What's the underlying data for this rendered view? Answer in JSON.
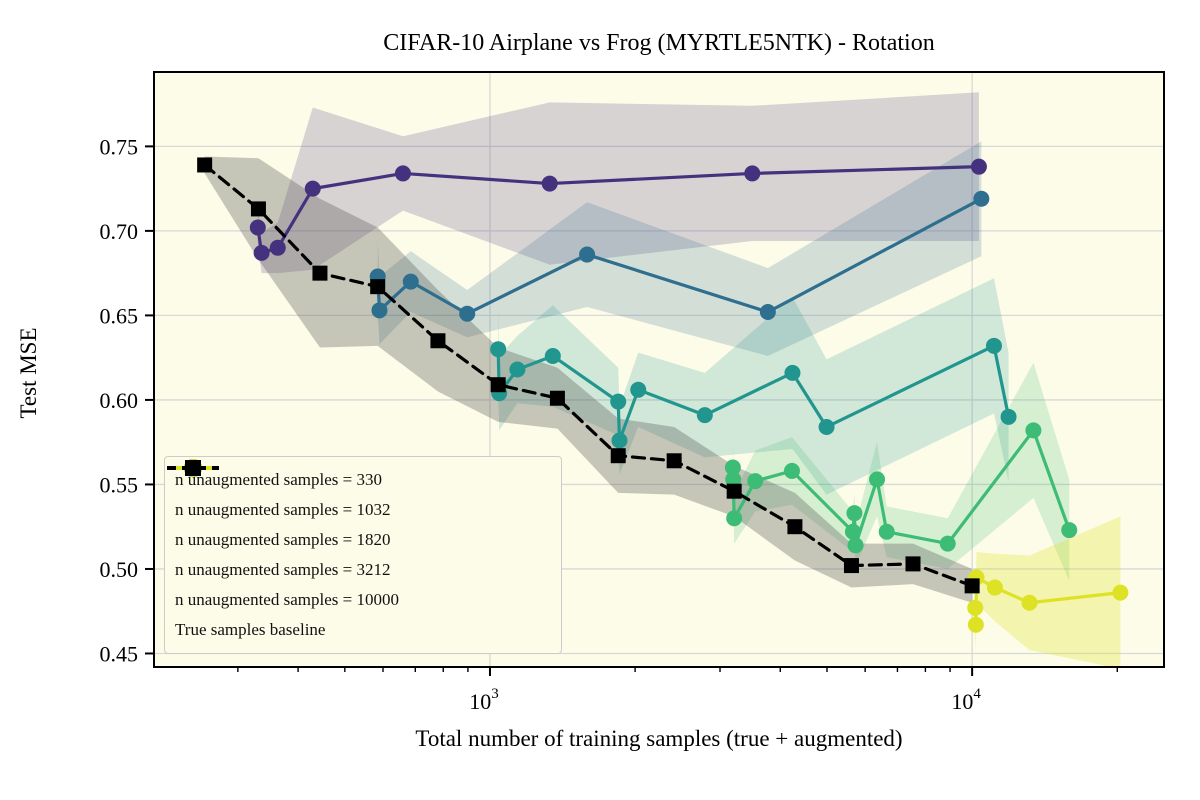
{
  "title": "CIFAR-10 Airplane vs Frog (MYRTLE5NTK) - Rotation",
  "x_axis": {
    "label": "Total number of training samples (true + augmented)",
    "scale": "log",
    "range": [
      201,
      25000
    ],
    "major_ticks": [
      {
        "value": 1000,
        "base": "10",
        "exp": "3"
      },
      {
        "value": 10000,
        "base": "10",
        "exp": "4"
      }
    ],
    "minor_ticks": [
      300,
      400,
      500,
      600,
      700,
      800,
      900,
      2000,
      3000,
      4000,
      5000,
      6000,
      7000,
      8000,
      9000,
      20000
    ]
  },
  "y_axis": {
    "label": "Test MSE",
    "range": [
      0.442,
      0.794
    ],
    "ticks": [
      0.45,
      0.5,
      0.55,
      0.6,
      0.65,
      0.7,
      0.75
    ],
    "tick_labels": [
      "0.45",
      "0.50",
      "0.55",
      "0.60",
      "0.65",
      "0.70",
      "0.75"
    ]
  },
  "colors": {
    "background": "#fdfce9",
    "grid": "#d8d8d8",
    "spine": "#000000",
    "series_330": "#45327e",
    "series_1032": "#2e6e8e",
    "series_1820": "#21968f",
    "series_3212": "#3cbc75",
    "series_10000": "#dde224",
    "baseline": "#000000",
    "baseline_band": "#4a4a4a"
  },
  "chart_data": {
    "type": "line",
    "title": "CIFAR-10 Airplane vs Frog (MYRTLE5NTK) - Rotation",
    "xlabel": "Total number of training samples (true + augmented)",
    "ylabel": "Test MSE",
    "xscale": "log",
    "xlim": [
      201,
      25000
    ],
    "ylim": [
      0.442,
      0.794
    ],
    "grid": true,
    "legend_position": "lower-left",
    "series": [
      {
        "label": "n unaugmented samples = 330",
        "color_key": "series_330",
        "marker": "circle",
        "line_style": "solid",
        "x": [
          330,
          336,
          363,
          429,
          660,
          1330,
          3500,
          10330
        ],
        "y": [
          0.702,
          0.687,
          0.69,
          0.725,
          0.734,
          0.728,
          0.734,
          0.738
        ],
        "band": [
          0.01,
          0.012,
          0.015,
          0.048,
          0.022,
          0.048,
          0.04,
          0.044
        ]
      },
      {
        "label": "n unaugmented samples = 1032",
        "color_key": "series_1032",
        "marker": "circle",
        "line_style": "solid",
        "x": [
          585,
          590,
          685,
          897,
          1590,
          3770,
          10450
        ],
        "y": [
          0.673,
          0.653,
          0.67,
          0.651,
          0.686,
          0.652,
          0.719
        ],
        "band": [
          0.022,
          0.02,
          0.018,
          0.014,
          0.031,
          0.026,
          0.034
        ]
      },
      {
        "label": "n unaugmented samples = 1820",
        "color_key": "series_1820",
        "marker": "circle",
        "line_style": "solid",
        "x": [
          1040,
          1045,
          1140,
          1350,
          1845,
          1856,
          2030,
          2790,
          4240,
          4990,
          11100,
          11900
        ],
        "y": [
          0.63,
          0.604,
          0.618,
          0.626,
          0.599,
          0.576,
          0.606,
          0.591,
          0.616,
          0.584,
          0.632,
          0.59
        ],
        "band": [
          0.026,
          0.022,
          0.02,
          0.03,
          0.02,
          0.02,
          0.022,
          0.025,
          0.045,
          0.04,
          0.04,
          0.038
        ]
      },
      {
        "label": "n unaugmented samples = 3212",
        "color_key": "series_3212",
        "marker": "circle",
        "line_style": "solid",
        "x": [
          3190,
          3195,
          3210,
          3550,
          4230,
          5660,
          5700,
          5730,
          6350,
          6650,
          8900,
          13400,
          15900
        ],
        "y": [
          0.56,
          0.553,
          0.53,
          0.552,
          0.558,
          0.522,
          0.533,
          0.514,
          0.553,
          0.522,
          0.515,
          0.582,
          0.523
        ],
        "band": [
          0.015,
          0.015,
          0.015,
          0.018,
          0.02,
          0.012,
          0.012,
          0.012,
          0.022,
          0.015,
          0.015,
          0.04,
          0.03
        ]
      },
      {
        "label": "n unaugmented samples = 10000",
        "color_key": "series_10000",
        "marker": "circle",
        "line_style": "solid",
        "x": [
          10150,
          10180,
          10210,
          11150,
          13150,
          20300
        ],
        "y": [
          0.477,
          0.467,
          0.495,
          0.489,
          0.48,
          0.486
        ],
        "band": [
          0.018,
          0.015,
          0.015,
          0.02,
          0.028,
          0.045
        ]
      },
      {
        "label": "True samples baseline",
        "color_key": "baseline",
        "marker": "square",
        "line_style": "dashed",
        "x": [
          256,
          331,
          444,
          585,
          780,
          1040,
          1380,
          1845,
          2410,
          3210,
          4290,
          5620,
          7540,
          10000
        ],
        "y": [
          0.739,
          0.713,
          0.675,
          0.667,
          0.635,
          0.609,
          0.601,
          0.567,
          0.564,
          0.546,
          0.525,
          0.502,
          0.503,
          0.49
        ],
        "band": [
          0.005,
          0.03,
          0.044,
          0.035,
          0.03,
          0.022,
          0.018,
          0.022,
          0.02,
          0.015,
          0.02,
          0.013,
          0.012,
          0.01
        ]
      }
    ]
  }
}
